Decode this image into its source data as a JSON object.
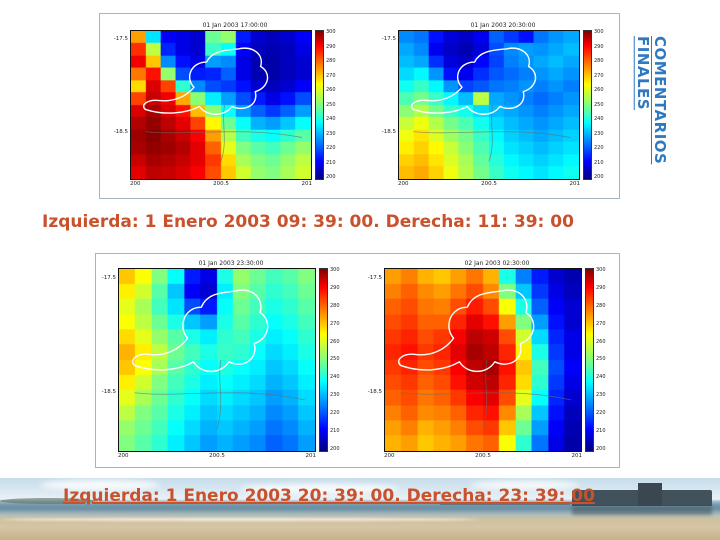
{
  "slide": {
    "vertical_title": "COMENTARIOS FINALES",
    "captions": {
      "top": "Izquierda: 1 Enero 2003 09: 39: 00. Derecha: 11: 39: 00",
      "bottom": "Izquierda: 1 Enero 2003 20: 39: 00. Derecha: 23: 39: 00"
    },
    "colors": {
      "caption_text": "#c9512c",
      "vertical_title_text": "#2e79c0",
      "panel_border": "#9fb6c9"
    }
  },
  "chart_data": [
    {
      "type": "heatmap",
      "panel": "top-left",
      "title": "01 Jan 2003 17:00:00",
      "x_ticks": [
        "200",
        "200.5",
        "201"
      ],
      "y_ticks": [
        "-17.5",
        "-18.5"
      ],
      "value_range": [
        200,
        300
      ],
      "colorbar_ticks": [
        "300",
        "290",
        "280",
        "270",
        "260",
        "250",
        "240",
        "230",
        "220",
        "210",
        "200"
      ],
      "colormap": "jet",
      "grid": [
        [
          272,
          235,
          212,
          210,
          208,
          248,
          252,
          215,
          208,
          206,
          208,
          212
        ],
        [
          283,
          256,
          216,
          210,
          208,
          243,
          238,
          212,
          206,
          205,
          206,
          210
        ],
        [
          289,
          268,
          226,
          214,
          210,
          228,
          226,
          210,
          205,
          204,
          206,
          208
        ],
        [
          276,
          286,
          252,
          220,
          215,
          216,
          222,
          210,
          205,
          204,
          206,
          208
        ],
        [
          266,
          291,
          281,
          242,
          226,
          220,
          218,
          214,
          208,
          206,
          208,
          212
        ],
        [
          281,
          293,
          289,
          271,
          251,
          236,
          228,
          220,
          215,
          210,
          214,
          220
        ],
        [
          291,
          296,
          291,
          286,
          269,
          251,
          238,
          228,
          222,
          218,
          222,
          228
        ],
        [
          295,
          298,
          294,
          290,
          281,
          263,
          248,
          238,
          230,
          228,
          232,
          238
        ],
        [
          297,
          299,
          296,
          293,
          288,
          272,
          255,
          244,
          240,
          238,
          242,
          246
        ],
        [
          296,
          298,
          297,
          295,
          290,
          278,
          260,
          250,
          246,
          244,
          248,
          252
        ],
        [
          293,
          296,
          295,
          293,
          290,
          282,
          266,
          254,
          250,
          248,
          252,
          256
        ],
        [
          290,
          294,
          293,
          291,
          288,
          280,
          268,
          258,
          252,
          250,
          254,
          258
        ]
      ]
    },
    {
      "type": "heatmap",
      "panel": "top-right",
      "title": "01 Jan 2003 20:30:00",
      "x_ticks": [
        "200",
        "200.5",
        "201"
      ],
      "y_ticks": [
        "-17.5",
        "-18.5"
      ],
      "value_range": [
        200,
        300
      ],
      "colorbar_ticks": [
        "300",
        "290",
        "280",
        "270",
        "260",
        "250",
        "240",
        "230",
        "220",
        "210",
        "200"
      ],
      "colormap": "jet",
      "grid": [
        [
          226,
          224,
          214,
          209,
          207,
          211,
          222,
          218,
          214,
          224,
          227,
          229
        ],
        [
          229,
          226,
          211,
          207,
          205,
          209,
          220,
          226,
          228,
          227,
          229,
          231
        ],
        [
          231,
          229,
          217,
          209,
          207,
          213,
          219,
          225,
          227,
          229,
          231,
          229
        ],
        [
          234,
          237,
          227,
          214,
          211,
          217,
          221,
          223,
          225,
          227,
          229,
          227
        ],
        [
          239,
          243,
          237,
          227,
          219,
          221,
          224,
          225,
          227,
          225,
          227,
          225
        ],
        [
          245,
          249,
          243,
          237,
          231,
          256,
          229,
          227,
          225,
          223,
          225,
          227
        ],
        [
          251,
          255,
          249,
          243,
          239,
          234,
          231,
          229,
          227,
          225,
          227,
          229
        ],
        [
          257,
          261,
          255,
          249,
          245,
          239,
          234,
          231,
          229,
          227,
          229,
          231
        ],
        [
          261,
          265,
          259,
          253,
          249,
          243,
          237,
          233,
          231,
          229,
          231,
          233
        ],
        [
          264,
          267,
          263,
          257,
          251,
          245,
          239,
          235,
          233,
          231,
          233,
          235
        ],
        [
          267,
          269,
          265,
          259,
          254,
          247,
          241,
          237,
          235,
          233,
          235,
          237
        ],
        [
          269,
          271,
          267,
          261,
          255,
          249,
          243,
          239,
          237,
          235,
          237,
          239
        ]
      ]
    },
    {
      "type": "heatmap",
      "panel": "bottom-left",
      "title": "01 Jan 2003 23:30:00",
      "x_ticks": [
        "200",
        "200.5",
        "201"
      ],
      "y_ticks": [
        "-17.5",
        "-18.5"
      ],
      "value_range": [
        200,
        300
      ],
      "colorbar_ticks": [
        "300",
        "290",
        "280",
        "270",
        "260",
        "250",
        "240",
        "230",
        "220",
        "210",
        "200"
      ],
      "colormap": "jet",
      "grid": [
        [
          268,
          262,
          250,
          238,
          215,
          210,
          240,
          252,
          248,
          244,
          246,
          250
        ],
        [
          264,
          258,
          246,
          232,
          212,
          208,
          236,
          250,
          246,
          242,
          244,
          248
        ],
        [
          260,
          254,
          244,
          235,
          220,
          215,
          238,
          248,
          244,
          240,
          242,
          246
        ],
        [
          262,
          256,
          248,
          240,
          232,
          228,
          240,
          246,
          242,
          238,
          240,
          244
        ],
        [
          266,
          260,
          252,
          246,
          240,
          236,
          242,
          244,
          240,
          236,
          238,
          242
        ],
        [
          270,
          264,
          256,
          248,
          244,
          240,
          243,
          242,
          238,
          234,
          236,
          240
        ],
        [
          268,
          262,
          254,
          246,
          242,
          238,
          240,
          238,
          236,
          232,
          234,
          238
        ],
        [
          264,
          258,
          250,
          244,
          240,
          236,
          238,
          236,
          234,
          230,
          232,
          236
        ],
        [
          260,
          254,
          248,
          242,
          238,
          234,
          236,
          234,
          232,
          228,
          230,
          234
        ],
        [
          256,
          250,
          246,
          240,
          236,
          232,
          234,
          232,
          230,
          226,
          228,
          232
        ],
        [
          252,
          248,
          244,
          238,
          234,
          230,
          232,
          230,
          228,
          224,
          226,
          230
        ],
        [
          250,
          246,
          242,
          236,
          232,
          228,
          230,
          228,
          226,
          222,
          224,
          228
        ]
      ]
    },
    {
      "type": "heatmap",
      "panel": "bottom-right",
      "title": "02 Jan 2003 02:30:00",
      "x_ticks": [
        "200",
        "200.5",
        "201"
      ],
      "y_ticks": [
        "-17.5",
        "-18.5"
      ],
      "value_range": [
        200,
        300
      ],
      "colorbar_ticks": [
        "300",
        "290",
        "280",
        "270",
        "260",
        "250",
        "240",
        "230",
        "220",
        "210",
        "200"
      ],
      "colormap": "jet",
      "grid": [
        [
          272,
          275,
          270,
          268,
          272,
          276,
          270,
          240,
          225,
          215,
          208,
          205
        ],
        [
          275,
          278,
          274,
          272,
          276,
          280,
          274,
          250,
          232,
          218,
          210,
          206
        ],
        [
          278,
          280,
          276,
          275,
          280,
          285,
          280,
          262,
          240,
          222,
          212,
          208
        ],
        [
          280,
          282,
          278,
          278,
          284,
          290,
          286,
          272,
          250,
          228,
          214,
          208
        ],
        [
          282,
          284,
          280,
          282,
          288,
          294,
          292,
          280,
          258,
          234,
          216,
          210
        ],
        [
          284,
          286,
          282,
          284,
          290,
          296,
          294,
          284,
          264,
          240,
          218,
          210
        ],
        [
          282,
          284,
          280,
          282,
          288,
          294,
          296,
          286,
          268,
          244,
          220,
          212
        ],
        [
          280,
          282,
          278,
          280,
          286,
          292,
          294,
          284,
          266,
          242,
          218,
          210
        ],
        [
          278,
          280,
          276,
          278,
          282,
          288,
          290,
          280,
          260,
          238,
          216,
          208
        ],
        [
          275,
          278,
          274,
          275,
          278,
          284,
          286,
          274,
          254,
          232,
          214,
          206
        ],
        [
          272,
          275,
          270,
          272,
          275,
          280,
          282,
          268,
          248,
          228,
          212,
          205
        ],
        [
          270,
          272,
          268,
          270,
          272,
          276,
          278,
          262,
          242,
          224,
          210,
          204
        ]
      ]
    }
  ]
}
